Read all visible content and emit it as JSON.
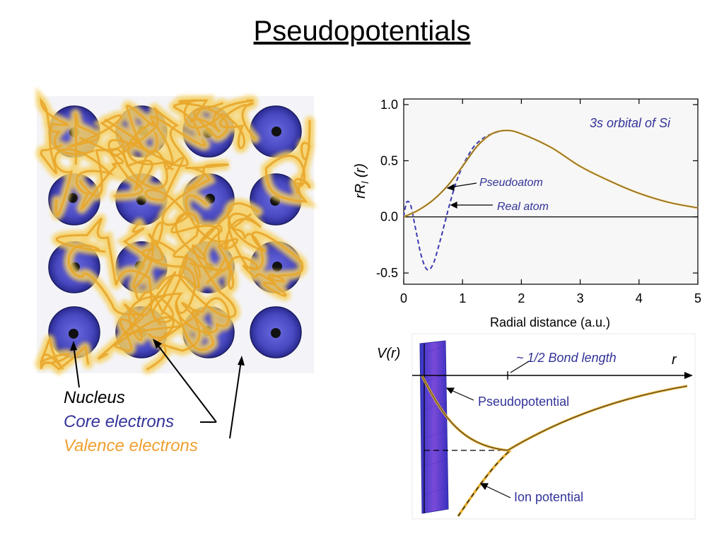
{
  "title": "Pseudopotentials",
  "legend": {
    "nucleus": "Nucleus",
    "core": "Core electrons",
    "valence": "Valence electrons"
  },
  "colors": {
    "core": "#3a3ab0",
    "valence": "#f0a030",
    "pseudo": "#e8b030",
    "annotation": "#333399"
  },
  "chart_data": {
    "type": "line",
    "xlabel": "Radial distance (a.u.)",
    "ylabel": "rR_l(r)",
    "xlim": [
      0,
      5
    ],
    "ylim": [
      -0.6,
      1.05
    ],
    "xticks": [
      "0",
      "1",
      "2",
      "3",
      "4",
      "5"
    ],
    "yticks": [
      "1.0",
      "0.5",
      "0.0",
      "-0.5"
    ],
    "annotation": "3s orbital of Si",
    "series": [
      {
        "name": "Pseudoatom",
        "x": [
          0,
          0.25,
          0.5,
          0.75,
          1.0,
          1.25,
          1.5,
          1.75,
          2.0,
          2.5,
          3.0,
          3.5,
          4.0,
          4.5,
          5.0
        ],
        "y": [
          0.0,
          0.06,
          0.15,
          0.28,
          0.45,
          0.63,
          0.74,
          0.77,
          0.74,
          0.62,
          0.45,
          0.32,
          0.21,
          0.13,
          0.08
        ]
      },
      {
        "name": "Real atom",
        "x": [
          0,
          0.05,
          0.12,
          0.2,
          0.3,
          0.4,
          0.5,
          0.6,
          0.7,
          0.8,
          0.9,
          1.0,
          1.1,
          1.2,
          1.35,
          1.5,
          1.75,
          2.0,
          2.5,
          3.0,
          3.5,
          4.0,
          4.5,
          5.0
        ],
        "y": [
          0.0,
          0.13,
          0.1,
          -0.1,
          -0.35,
          -0.47,
          -0.42,
          -0.25,
          -0.05,
          0.15,
          0.32,
          0.45,
          0.55,
          0.63,
          0.7,
          0.74,
          0.77,
          0.74,
          0.62,
          0.45,
          0.32,
          0.21,
          0.13,
          0.08
        ]
      }
    ]
  },
  "potential": {
    "y_label": "V(r)",
    "x_label": "r",
    "bond_label": "~ 1/2 Bond length",
    "pseudo_label": "Pseudopotential",
    "ion_label": "Ion potential"
  }
}
